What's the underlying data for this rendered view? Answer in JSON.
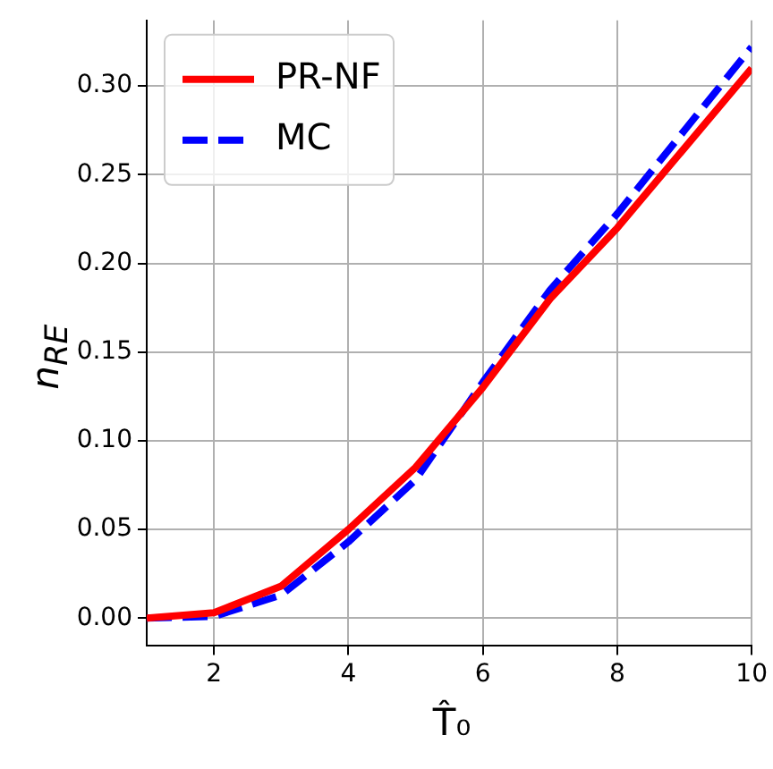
{
  "chart_data": {
    "type": "line",
    "xlabel": "T̂₀",
    "ylabel": "n$_{RE}$",
    "x": [
      1,
      2,
      3,
      4,
      5,
      6,
      7,
      8,
      9,
      10
    ],
    "series": [
      {
        "name": "PR-NF",
        "color": "#ff0000",
        "line_style": "solid",
        "values": [
          0,
          0.003,
          0.018,
          0.05,
          0.085,
          0.13,
          0.18,
          0.22,
          0.265,
          0.31
        ]
      },
      {
        "name": "MC",
        "color": "#0000ff",
        "line_style": "dashed",
        "values": [
          0,
          0.001,
          0.013,
          0.043,
          0.078,
          0.133,
          0.185,
          0.228,
          0.275,
          0.322
        ]
      }
    ],
    "xlim": [
      1,
      10
    ],
    "xticks": [
      2,
      4,
      6,
      8,
      10
    ],
    "ylim": [
      -0.0157,
      0.337
    ],
    "yticks": [
      {
        "value": 0,
        "label": "0.00"
      },
      {
        "value": 0.05,
        "label": "0.05"
      },
      {
        "value": 0.1,
        "label": "0.10"
      },
      {
        "value": 0.15,
        "label": "0.15"
      },
      {
        "value": 0.2,
        "label": "0.20"
      },
      {
        "value": 0.25,
        "label": "0.25"
      },
      {
        "value": 0.3,
        "label": "0.30"
      }
    ],
    "grid": true,
    "legend": "top left",
    "marker": "none"
  }
}
